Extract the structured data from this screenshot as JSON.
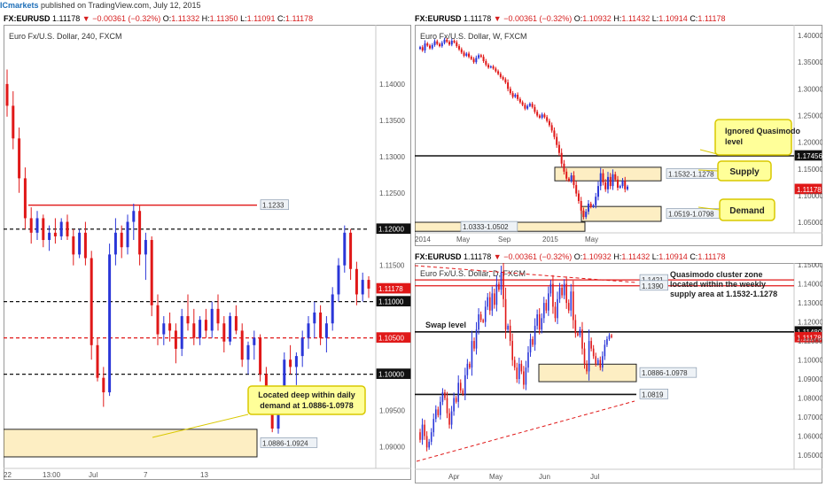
{
  "header": {
    "publisher": "ICmarkets",
    "published_text": "published on TradingView.com, July 12, 2015"
  },
  "quote": {
    "symbol": "FX:EURUSD",
    "last": "1.11178",
    "arrow": "▼",
    "change": "−0.00361 (−0.32%)",
    "o_label": "O:",
    "h_label": "H:",
    "l_label": "L:",
    "c_label": "C:"
  },
  "ohlc": {
    "p240": {
      "o": "1.11332",
      "h": "1.11350",
      "l": "1.11091",
      "c": "1.11178"
    },
    "weekly": {
      "o": "1.10932",
      "h": "1.11432",
      "l": "1.10914",
      "c": "1.11178"
    },
    "daily": {
      "o": "1.10932",
      "h": "1.11432",
      "l": "1.10914",
      "c": "1.11178"
    }
  },
  "colors": {
    "up": "#2a36d8",
    "down": "#e01818",
    "zone_fill": "#fdeec3",
    "callout_fill": "#ffff99",
    "callout_border": "#d9c800",
    "red_level": "#e01818",
    "black_level": "#111111"
  },
  "chart_data": [
    {
      "type": "candlestick",
      "title": "Euro Fx/U.S. Dollar, 240, FXCM",
      "ylim": [
        1.0875,
        1.1445
      ],
      "x_tick_labels": [
        "22",
        "13:00",
        "Jul",
        "7",
        "13"
      ],
      "y_tick_labels": [
        "1.14000",
        "1.13500",
        "1.13000",
        "1.12500",
        "1.11500",
        "1.09500",
        "1.09000"
      ],
      "levels": [
        {
          "value": 1.1233,
          "label": "1.1233",
          "style": "solid-red"
        },
        {
          "value": 1.12,
          "label": "1.12000",
          "style": "dashed-black"
        },
        {
          "value": 1.11178,
          "label": "1.11178",
          "style": "price"
        },
        {
          "value": 1.11,
          "label": "1.11000",
          "style": "dashed-black"
        },
        {
          "value": 1.105,
          "label": "1.10500",
          "style": "dashed-red"
        },
        {
          "value": 1.1,
          "label": "1.10000",
          "style": "dashed-black"
        }
      ],
      "zones": [
        {
          "low": 1.0886,
          "high": 1.0924,
          "label": "1.0886-1.0924"
        }
      ],
      "annotations": [
        {
          "text": [
            "Located deep within daily",
            "demand at 1.0886-1.0978"
          ]
        }
      ],
      "candles": [
        [
          1.14,
          1.142,
          1.1355,
          1.137
        ],
        [
          1.137,
          1.139,
          1.131,
          1.1325
        ],
        [
          1.1325,
          1.134,
          1.125,
          1.127
        ],
        [
          1.127,
          1.1285,
          1.12,
          1.1215
        ],
        [
          1.1215,
          1.123,
          1.118,
          1.1195
        ],
        [
          1.1195,
          1.1225,
          1.1185,
          1.1215
        ],
        [
          1.1215,
          1.122,
          1.1175,
          1.1185
        ],
        [
          1.1185,
          1.1205,
          1.117,
          1.1195
        ],
        [
          1.1195,
          1.1215,
          1.118,
          1.119
        ],
        [
          1.119,
          1.1215,
          1.1185,
          1.121
        ],
        [
          1.121,
          1.122,
          1.1185,
          1.119
        ],
        [
          1.119,
          1.12,
          1.115,
          1.1165
        ],
        [
          1.1165,
          1.12,
          1.116,
          1.1195
        ],
        [
          1.1195,
          1.121,
          1.115,
          1.116
        ],
        [
          1.116,
          1.117,
          1.102,
          1.104
        ],
        [
          1.104,
          1.105,
          1.099,
          1.0995
        ],
        [
          1.0995,
          1.101,
          1.0955,
          1.0975
        ],
        [
          1.0975,
          1.118,
          1.097,
          1.1165
        ],
        [
          1.1165,
          1.1215,
          1.115,
          1.1195
        ],
        [
          1.1195,
          1.1205,
          1.116,
          1.1175
        ],
        [
          1.1175,
          1.122,
          1.1165,
          1.121
        ],
        [
          1.121,
          1.1235,
          1.1185,
          1.1225
        ],
        [
          1.1225,
          1.1232,
          1.115,
          1.1165
        ],
        [
          1.1165,
          1.1195,
          1.113,
          1.1185
        ],
        [
          1.1185,
          1.119,
          1.108,
          1.1095
        ],
        [
          1.1095,
          1.111,
          1.104,
          1.1055
        ],
        [
          1.1055,
          1.108,
          1.104,
          1.107
        ],
        [
          1.107,
          1.1085,
          1.1045,
          1.106
        ],
        [
          1.106,
          1.107,
          1.1015,
          1.1035
        ],
        [
          1.1035,
          1.109,
          1.1025,
          1.108
        ],
        [
          1.108,
          1.111,
          1.106,
          1.107
        ],
        [
          1.107,
          1.109,
          1.104,
          1.105
        ],
        [
          1.105,
          1.108,
          1.104,
          1.1075
        ],
        [
          1.1075,
          1.109,
          1.105,
          1.106
        ],
        [
          1.106,
          1.11,
          1.105,
          1.109
        ],
        [
          1.109,
          1.111,
          1.106,
          1.107
        ],
        [
          1.107,
          1.108,
          1.103,
          1.1045
        ],
        [
          1.1045,
          1.1085,
          1.104,
          1.108
        ],
        [
          1.108,
          1.1095,
          1.1055,
          1.106
        ],
        [
          1.106,
          1.107,
          1.101,
          1.102
        ],
        [
          1.102,
          1.1045,
          1.1,
          1.104
        ],
        [
          1.104,
          1.106,
          1.102,
          1.105
        ],
        [
          1.105,
          1.1055,
          1.099,
          1.1
        ],
        [
          1.1,
          1.101,
          1.095,
          1.096
        ],
        [
          1.096,
          1.097,
          1.092,
          1.0925
        ],
        [
          1.0925,
          1.098,
          1.0918,
          1.0975
        ],
        [
          1.0975,
          1.103,
          1.0965,
          1.102
        ],
        [
          1.102,
          1.104,
          1.1,
          1.101
        ],
        [
          1.101,
          1.103,
          1.0985,
          1.1025
        ],
        [
          1.1025,
          1.106,
          1.101,
          1.105
        ],
        [
          1.105,
          1.108,
          1.1035,
          1.107
        ],
        [
          1.107,
          1.11,
          1.105,
          1.1085
        ],
        [
          1.1085,
          1.1095,
          1.104,
          1.105
        ],
        [
          1.105,
          1.108,
          1.103,
          1.107
        ],
        [
          1.107,
          1.112,
          1.106,
          1.111
        ],
        [
          1.111,
          1.116,
          1.11,
          1.115
        ],
        [
          1.115,
          1.1205,
          1.114,
          1.1195
        ],
        [
          1.1195,
          1.12,
          1.113,
          1.1145
        ],
        [
          1.1145,
          1.1155,
          1.1095,
          1.111
        ],
        [
          1.111,
          1.114,
          1.11,
          1.113
        ],
        [
          1.113,
          1.1135,
          1.1105,
          1.1118
        ]
      ]
    },
    {
      "type": "candlestick",
      "title": "Euro Fx/U.S. Dollar, W, FXCM",
      "ylim": [
        1.032,
        1.41
      ],
      "x_tick_labels": [
        "2014",
        "May",
        "Sep",
        "2015",
        "May"
      ],
      "y_tick_labels": [
        "1.40000",
        "1.35000",
        "1.30000",
        "1.25000",
        "1.20000",
        "1.15000",
        "1.10000",
        "1.05000"
      ],
      "levels": [
        {
          "value": 1.17456,
          "label": "1.17456",
          "style": "solid-black"
        },
        {
          "value": 1.11178,
          "label": "1.11178",
          "style": "price"
        }
      ],
      "zones": [
        {
          "low": 1.1278,
          "high": 1.1532,
          "label": "1.1532-1.1278"
        },
        {
          "low": 1.0519,
          "high": 1.0798,
          "label": "1.0519-1.0798"
        },
        {
          "low": 1.0333,
          "high": 1.0502,
          "label": "1.0333-1.0502"
        }
      ],
      "annotations": [
        {
          "text": [
            "Ignored Quasimodo",
            "level"
          ]
        },
        {
          "text": [
            "Supply"
          ]
        },
        {
          "text": [
            "Demand"
          ]
        }
      ],
      "start": 1.375,
      "closes": [
        1.378,
        1.372,
        1.385,
        1.381,
        1.376,
        1.382,
        1.389,
        1.384,
        1.38,
        1.386,
        1.392,
        1.388,
        1.383,
        1.39,
        1.387,
        1.38,
        1.374,
        1.368,
        1.362,
        1.366,
        1.36,
        1.356,
        1.35,
        1.358,
        1.363,
        1.36,
        1.352,
        1.345,
        1.34,
        1.342,
        1.338,
        1.333,
        1.328,
        1.322,
        1.318,
        1.312,
        1.3,
        1.292,
        1.285,
        1.289,
        1.281,
        1.275,
        1.27,
        1.263,
        1.268,
        1.272,
        1.266,
        1.257,
        1.25,
        1.246,
        1.252,
        1.247,
        1.24,
        1.232,
        1.222,
        1.21,
        1.195,
        1.18,
        1.16,
        1.145,
        1.132,
        1.128,
        1.138,
        1.12,
        1.104,
        1.09,
        1.072,
        1.06,
        1.07,
        1.085,
        1.079,
        1.082,
        1.098,
        1.118,
        1.142,
        1.125,
        1.112,
        1.135,
        1.118,
        1.14,
        1.13,
        1.115,
        1.118,
        1.128,
        1.112,
        1.117
      ]
    },
    {
      "type": "candlestick",
      "title": "Euro Fx/U.S. Dollar, D, FXCM",
      "ylim": [
        1.043,
        1.151
      ],
      "x_tick_labels": [
        "Apr",
        "May",
        "Jun",
        "Jul"
      ],
      "y_tick_labels": [
        "1.15000",
        "1.14000",
        "1.13000",
        "1.12000",
        "1.11000",
        "1.10000",
        "1.09000",
        "1.08000",
        "1.07000",
        "1.06000",
        "1.05000"
      ],
      "levels": [
        {
          "value": 1.1421,
          "label": "1.1421",
          "style": "solid-red"
        },
        {
          "value": 1.139,
          "label": "1.1390",
          "style": "solid-red"
        },
        {
          "value": 1.1148,
          "label": "1.11480",
          "style": "solid-black"
        },
        {
          "value": 1.11178,
          "label": "1.11178",
          "style": "price"
        },
        {
          "value": 1.0819,
          "label": "1.0819",
          "style": "solid-black"
        }
      ],
      "zones": [
        {
          "low": 1.0886,
          "high": 1.0978,
          "label": "1.0886-1.0978"
        }
      ],
      "annotations": [
        {
          "text": [
            "Quasimodo cluster zone",
            "located within the weekly",
            "supply area at 1.1532-1.1278"
          ]
        },
        {
          "text": [
            "Swap level"
          ]
        }
      ],
      "start": 1.062,
      "closes": [
        1.058,
        1.066,
        1.06,
        1.054,
        1.057,
        1.062,
        1.069,
        1.074,
        1.071,
        1.078,
        1.083,
        1.08,
        1.072,
        1.066,
        1.073,
        1.08,
        1.078,
        1.088,
        1.084,
        1.082,
        1.092,
        1.098,
        1.096,
        1.11,
        1.106,
        1.116,
        1.124,
        1.121,
        1.12,
        1.128,
        1.133,
        1.126,
        1.135,
        1.129,
        1.14,
        1.137,
        1.146,
        1.132,
        1.116,
        1.118,
        1.11,
        1.1,
        1.096,
        1.09,
        1.098,
        1.094,
        1.087,
        1.096,
        1.104,
        1.111,
        1.108,
        1.118,
        1.124,
        1.116,
        1.122,
        1.13,
        1.126,
        1.135,
        1.14,
        1.128,
        1.122,
        1.132,
        1.138,
        1.134,
        1.14,
        1.13,
        1.126,
        1.136,
        1.121,
        1.114,
        1.113,
        1.116,
        1.106,
        1.098,
        1.094,
        1.11,
        1.106,
        1.102,
        1.098,
        1.1,
        1.096,
        1.102,
        1.108,
        1.111,
        1.113,
        1.112
      ]
    }
  ]
}
